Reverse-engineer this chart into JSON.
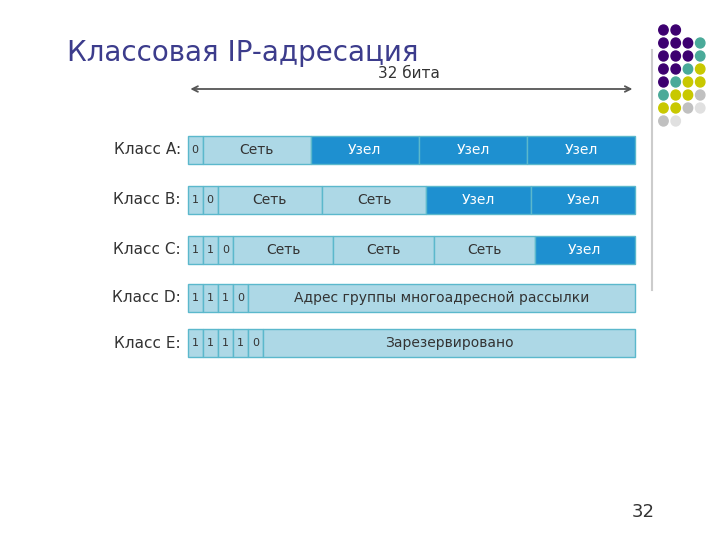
{
  "title": "Классовая IP-адресация",
  "subtitle": "32 бита",
  "page_number": "32",
  "classes": [
    "Класс A:",
    "Класс B:",
    "Класс C:",
    "Класс D:",
    "Класс E:"
  ],
  "color_light_blue": "#add8e6",
  "color_medium_blue": "#1e90d0",
  "color_border": "#5bb8cc",
  "title_color": "#3c3c8c",
  "text_color": "#333333",
  "background": "#ffffff",
  "arrow_color": "#555555",
  "dot_grid": [
    [
      "#3d0070",
      "#3d0070",
      "#3d0070"
    ],
    [
      "#3d0070",
      "#3d0070",
      "#3d0070"
    ],
    [
      "#3d0070",
      "#3d0070",
      "#3d0070"
    ],
    [
      "#3d0070",
      "#3d0070",
      "#3d0070"
    ],
    [
      "#3d0070",
      "#4aaa99",
      "#c8c800"
    ],
    [
      "#3d0070",
      "#4aaa99",
      "#c8c800"
    ],
    [
      "#4aaa99",
      "#c8c800",
      "#c0c0c0"
    ],
    [
      "#c8c800",
      "#c0c0c0",
      "#c0c0c0"
    ]
  ],
  "dot_grid2": [
    [
      "#3d0070",
      "#3d0070",
      "#3d0070",
      "#3d0070"
    ],
    [
      "#3d0070",
      "#3d0070",
      "#3d0070",
      "#3d0070"
    ],
    [
      "#3d0070",
      "#4aaa99",
      "#4aaa99",
      "#c8c800"
    ],
    [
      "#3d0070",
      "#4aaa99",
      "#c8c800",
      "#c8c800"
    ],
    [
      "#4aaa99",
      "#c8c800",
      "#c8c800",
      "#c0c0c0"
    ],
    [
      "#c8c800",
      "#c8c800",
      "#c0c0c0",
      "#c0c0c0"
    ],
    [
      "#c8c800",
      "#c0c0c0",
      "#c0c0c0",
      "#e8e8e8"
    ],
    [
      "#c0c0c0",
      "#e8e8e8",
      "#e8e8e8",
      "#e8e8e8"
    ]
  ]
}
